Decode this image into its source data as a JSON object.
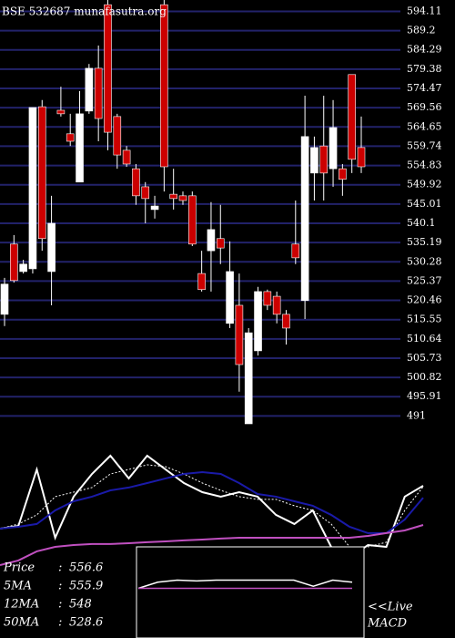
{
  "chart_data": [
    {
      "type": "candlestick",
      "title": "BSE 532687 munafasutra.org",
      "ylim": [
        489,
        597
      ],
      "yticks": [
        594.11,
        589.2,
        584.29,
        579.38,
        574.47,
        569.56,
        564.65,
        559.74,
        554.83,
        549.92,
        545.01,
        540.1,
        535.19,
        530.28,
        525.37,
        520.46,
        515.55,
        510.64,
        505.73,
        500.82,
        495.91,
        491
      ],
      "grid": true,
      "up_color": "#ffffff",
      "down_color": "#cc0000",
      "grid_color": "#22226a",
      "open": [
        516.9,
        534.8,
        527.8,
        528.5,
        569.8,
        527.8,
        568.9,
        562.9,
        550.6,
        568.7,
        579.6,
        595.8,
        567.3,
        558.7,
        554.0,
        549.4,
        543.6,
        595.8,
        547.5,
        547.1,
        547.1,
        527.3,
        533.1,
        536.2,
        514.6,
        519.2,
        489.0,
        507.6,
        522.7,
        521.5,
        516.9,
        534.8,
        520.4,
        552.9,
        559.8,
        554.0,
        554.0,
        578.0,
        559.4
      ],
      "high": [
        526.2,
        537.1,
        530.8,
        569.6,
        571.5,
        547.1,
        574.9,
        568.0,
        573.8,
        580.7,
        585.4,
        597.0,
        568.0,
        559.8,
        555.2,
        550.6,
        547.1,
        597.0,
        554.0,
        548.2,
        548.2,
        533.1,
        545.5,
        544.8,
        535.5,
        527.3,
        513.4,
        523.9,
        523.2,
        522.7,
        518.0,
        545.9,
        572.6,
        562.2,
        572.6,
        571.5,
        555.2,
        578.0,
        567.3
      ],
      "low": [
        513.9,
        525.0,
        527.3,
        527.3,
        533.1,
        519.2,
        567.3,
        559.8,
        550.6,
        568.0,
        561.0,
        558.7,
        554.0,
        554.5,
        544.8,
        540.1,
        541.3,
        548.2,
        543.6,
        544.8,
        534.3,
        522.7,
        522.7,
        529.7,
        513.4,
        497.2,
        489.0,
        506.4,
        518.0,
        514.6,
        509.2,
        529.7,
        515.7,
        545.9,
        545.9,
        549.4,
        547.1,
        552.9,
        552.9
      ],
      "close": [
        524.6,
        525.5,
        529.7,
        569.6,
        536.2,
        540.1,
        568.0,
        561.0,
        568.0,
        579.6,
        566.8,
        563.3,
        557.5,
        555.2,
        547.1,
        546.4,
        544.5,
        554.5,
        546.4,
        545.9,
        534.8,
        523.2,
        538.5,
        533.8,
        527.8,
        504.1,
        512.2,
        522.7,
        519.2,
        516.9,
        513.4,
        531.3,
        562.2,
        559.4,
        552.9,
        564.5,
        551.3,
        556.4,
        554.5
      ]
    },
    {
      "type": "line",
      "ylim": [
        500,
        591
      ],
      "separator": ":",
      "series": [
        {
          "name": "Price",
          "color": "#ffffff",
          "dash": false,
          "latest": 556.6,
          "values": [
            526.0,
            527.9,
            568.2,
            519.5,
            548.8,
            565.0,
            578.0,
            561.8,
            578.0,
            568.2,
            558.5,
            552.0,
            548.8,
            552.0,
            548.8,
            535.8,
            529.3,
            539.0,
            513.0,
            505.2,
            514.3,
            513.0,
            548.8,
            556.6
          ]
        },
        {
          "name": "5MA",
          "color": "#ffffff",
          "dash": true,
          "latest": 555.9,
          "values": [
            526.0,
            529.3,
            535.8,
            548.8,
            552.0,
            555.3,
            565.0,
            568.2,
            571.5,
            570.2,
            565.0,
            558.5,
            553.3,
            548.8,
            546.9,
            546.9,
            542.3,
            539.0,
            529.3,
            513.0,
            513.0,
            516.3,
            539.0,
            555.9
          ]
        },
        {
          "name": "12MA",
          "color": "#1a1aa8",
          "dash": false,
          "latest": 548,
          "values": [
            526.0,
            527.3,
            529.3,
            539.0,
            545.5,
            548.8,
            553.3,
            555.3,
            558.5,
            561.8,
            565.0,
            566.3,
            565.0,
            558.5,
            550.7,
            548.8,
            545.5,
            542.3,
            535.8,
            527.3,
            522.8,
            522.8,
            532.5,
            548
          ]
        },
        {
          "name": "50MA",
          "color": "#c050c0",
          "dash": false,
          "latest": 528.6,
          "values": [
            500.0,
            503.3,
            509.8,
            513.0,
            514.3,
            515.0,
            515.0,
            515.6,
            516.3,
            516.9,
            517.6,
            518.2,
            518.9,
            519.5,
            519.5,
            519.5,
            519.5,
            519.5,
            519.5,
            519.5,
            520.8,
            522.8,
            524.7,
            528.6
          ]
        }
      ]
    },
    {
      "type": "macd",
      "title": "MACD",
      "note": "<<Live",
      "ylim": [
        -1,
        1
      ],
      "series": [
        {
          "color": "#ffffff",
          "values": [
            0.1,
            0.25,
            0.3,
            0.28,
            0.3,
            0.3,
            0.3,
            0.3,
            0.3,
            0.15,
            0.3,
            0.25
          ]
        },
        {
          "color": "#c050c0",
          "values": [
            0.1,
            0.1,
            0.1,
            0.1,
            0.1,
            0.1,
            0.1,
            0.1,
            0.1,
            0.1,
            0.1,
            0.1
          ]
        }
      ]
    }
  ]
}
